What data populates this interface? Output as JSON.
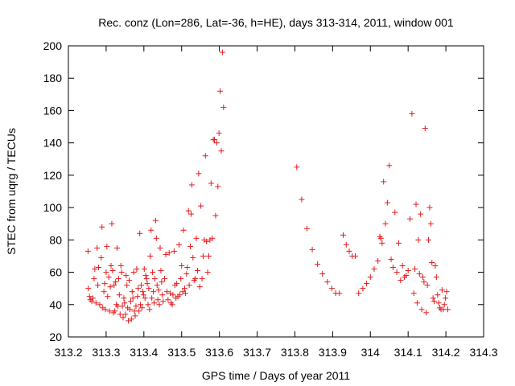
{
  "chart_data": {
    "type": "scatter",
    "title": "Rec. conz (Lon=286, Lat=-36, h=HE), days 313-314, 2011, window 001",
    "xlabel": "GPS time / Days of year 2011",
    "ylabel": "STEC from uqrg / TECUs",
    "xlim": [
      313.2,
      314.3
    ],
    "ylim": [
      20,
      200
    ],
    "x_ticks": [
      313.2,
      313.3,
      313.4,
      313.5,
      313.6,
      313.7,
      313.8,
      313.9,
      314,
      314.1,
      314.2,
      314.3
    ],
    "x_tick_labels": [
      "313.2",
      "313.3",
      "313.4",
      "313.5",
      "313.6",
      "313.7",
      "313.8",
      "313.9",
      "314",
      "314.1",
      "314.2",
      "314.3"
    ],
    "y_ticks": [
      20,
      40,
      60,
      80,
      100,
      120,
      140,
      160,
      180,
      200
    ],
    "y_tick_labels": [
      "20",
      "40",
      "60",
      "80",
      "100",
      "120",
      "140",
      "160",
      "180",
      "200"
    ],
    "grid": false,
    "marker": "+",
    "color": "#e41a1c",
    "series": [
      {
        "points": [
          [
            313.252,
            73
          ],
          [
            313.253,
            50
          ],
          [
            313.256,
            45
          ],
          [
            313.258,
            43
          ],
          [
            313.262,
            42
          ],
          [
            313.265,
            44
          ],
          [
            313.268,
            56
          ],
          [
            313.27,
            62
          ],
          [
            313.273,
            41
          ],
          [
            313.276,
            75
          ],
          [
            313.278,
            52
          ],
          [
            313.28,
            63
          ],
          [
            313.283,
            40
          ],
          [
            313.287,
            69
          ],
          [
            313.289,
            88
          ],
          [
            313.291,
            38
          ],
          [
            313.294,
            48
          ],
          [
            313.296,
            53
          ],
          [
            313.298,
            37
          ],
          [
            313.3,
            60
          ],
          [
            313.302,
            76
          ],
          [
            313.304,
            45
          ],
          [
            313.307,
            57
          ],
          [
            313.309,
            36
          ],
          [
            313.311,
            51
          ],
          [
            313.313,
            64
          ],
          [
            313.315,
            90
          ],
          [
            313.317,
            61
          ],
          [
            313.319,
            35
          ],
          [
            313.321,
            52
          ],
          [
            313.323,
            36
          ],
          [
            313.325,
            54
          ],
          [
            313.327,
            40
          ],
          [
            313.329,
            75
          ],
          [
            313.331,
            39
          ],
          [
            313.333,
            56
          ],
          [
            313.335,
            46
          ],
          [
            313.337,
            34
          ],
          [
            313.339,
            64
          ],
          [
            313.341,
            60
          ],
          [
            313.343,
            39
          ],
          [
            313.345,
            32
          ],
          [
            313.347,
            44
          ],
          [
            313.349,
            41
          ],
          [
            313.351,
            34
          ],
          [
            313.353,
            58
          ],
          [
            313.355,
            52
          ],
          [
            313.357,
            38
          ],
          [
            313.359,
            30
          ],
          [
            313.361,
            55
          ],
          [
            313.363,
            37
          ],
          [
            313.365,
            42
          ],
          [
            313.367,
            31
          ],
          [
            313.369,
            48
          ],
          [
            313.371,
            44
          ],
          [
            313.373,
            60
          ],
          [
            313.375,
            36
          ],
          [
            313.377,
            33
          ],
          [
            313.379,
            39
          ],
          [
            313.381,
            62
          ],
          [
            313.383,
            45
          ],
          [
            313.385,
            50
          ],
          [
            313.387,
            36
          ],
          [
            313.389,
            84
          ],
          [
            313.391,
            40
          ],
          [
            313.393,
            52
          ],
          [
            313.395,
            38
          ],
          [
            313.397,
            48
          ],
          [
            313.399,
            46
          ],
          [
            313.401,
            62
          ],
          [
            313.403,
            44
          ],
          [
            313.405,
            58
          ],
          [
            313.407,
            56
          ],
          [
            313.409,
            53
          ],
          [
            313.411,
            40
          ],
          [
            313.413,
            50
          ],
          [
            313.415,
            37
          ],
          [
            313.417,
            70
          ],
          [
            313.419,
            86
          ],
          [
            313.421,
            44
          ],
          [
            313.423,
            60
          ],
          [
            313.425,
            48
          ],
          [
            313.427,
            41
          ],
          [
            313.429,
            56
          ],
          [
            313.431,
            92
          ],
          [
            313.433,
            81
          ],
          [
            313.435,
            52
          ],
          [
            313.437,
            43
          ],
          [
            313.439,
            49
          ],
          [
            313.441,
            40
          ],
          [
            313.443,
            75
          ],
          [
            313.445,
            61
          ],
          [
            313.447,
            54
          ],
          [
            313.449,
            46
          ],
          [
            313.451,
            42
          ],
          [
            313.455,
            56
          ],
          [
            313.458,
            71
          ],
          [
            313.461,
            48
          ],
          [
            313.464,
            43
          ],
          [
            313.467,
            72
          ],
          [
            313.47,
            47
          ],
          [
            313.472,
            41
          ],
          [
            313.475,
            40
          ],
          [
            313.477,
            46
          ],
          [
            313.48,
            73
          ],
          [
            313.482,
            52
          ],
          [
            313.485,
            44
          ],
          [
            313.487,
            53
          ],
          [
            313.49,
            45
          ],
          [
            313.493,
            77
          ],
          [
            313.495,
            46
          ],
          [
            313.498,
            56
          ],
          [
            313.5,
            64
          ],
          [
            313.503,
            48
          ],
          [
            313.505,
            86
          ],
          [
            313.508,
            50
          ],
          [
            313.51,
            47
          ],
          [
            313.513,
            59
          ],
          [
            313.515,
            63
          ],
          [
            313.518,
            98
          ],
          [
            313.52,
            52
          ],
          [
            313.523,
            76
          ],
          [
            313.525,
            96
          ],
          [
            313.527,
            114
          ],
          [
            313.53,
            69
          ],
          [
            313.533,
            55
          ],
          [
            313.536,
            56
          ],
          [
            313.539,
            81
          ],
          [
            313.542,
            61
          ],
          [
            313.545,
            121
          ],
          [
            313.548,
            51
          ],
          [
            313.551,
            101
          ],
          [
            313.554,
            56
          ],
          [
            313.557,
            70
          ],
          [
            313.56,
            80
          ],
          [
            313.563,
            132
          ],
          [
            313.566,
            79
          ],
          [
            313.569,
            60
          ],
          [
            313.572,
            70
          ],
          [
            313.575,
            80
          ],
          [
            313.578,
            115
          ],
          [
            313.581,
            81
          ],
          [
            313.584,
            142
          ],
          [
            313.587,
            142
          ],
          [
            313.59,
            95
          ],
          [
            313.593,
            140
          ],
          [
            313.596,
            113
          ],
          [
            313.599,
            146
          ],
          [
            313.602,
            172
          ],
          [
            313.605,
            135
          ],
          [
            313.608,
            196
          ],
          [
            313.611,
            162
          ],
          [
            313.805,
            125
          ],
          [
            313.818,
            105
          ],
          [
            313.832,
            87
          ],
          [
            313.846,
            74
          ],
          [
            313.86,
            65
          ],
          [
            313.873,
            59
          ],
          [
            313.886,
            54
          ],
          [
            313.898,
            50
          ],
          [
            313.908,
            47
          ],
          [
            313.918,
            47
          ],
          [
            313.928,
            83
          ],
          [
            313.936,
            77
          ],
          [
            313.944,
            73
          ],
          [
            313.952,
            70
          ],
          [
            313.96,
            70
          ],
          [
            313.969,
            47
          ],
          [
            313.98,
            50
          ],
          [
            313.99,
            53
          ],
          [
            314.0,
            57
          ],
          [
            314.01,
            62
          ],
          [
            314.02,
            67
          ],
          [
            314.025,
            82
          ],
          [
            314.028,
            81
          ],
          [
            314.031,
            78
          ],
          [
            314.035,
            116
          ],
          [
            314.04,
            90
          ],
          [
            314.045,
            103
          ],
          [
            314.05,
            126
          ],
          [
            314.055,
            68
          ],
          [
            314.06,
            63
          ],
          [
            314.065,
            97
          ],
          [
            314.07,
            60
          ],
          [
            314.075,
            78
          ],
          [
            314.08,
            55
          ],
          [
            314.085,
            64
          ],
          [
            314.09,
            57
          ],
          [
            314.095,
            58
          ],
          [
            314.1,
            61
          ],
          [
            314.105,
            93
          ],
          [
            314.11,
            158
          ],
          [
            314.115,
            47
          ],
          [
            314.118,
            62
          ],
          [
            314.121,
            102
          ],
          [
            314.124,
            41
          ],
          [
            314.127,
            80
          ],
          [
            314.13,
            59
          ],
          [
            314.133,
            96
          ],
          [
            314.136,
            37
          ],
          [
            314.139,
            57
          ],
          [
            314.142,
            54
          ],
          [
            314.145,
            149
          ],
          [
            314.148,
            35
          ],
          [
            314.151,
            52
          ],
          [
            314.154,
            80
          ],
          [
            314.157,
            100
          ],
          [
            314.16,
            90
          ],
          [
            314.163,
            66
          ],
          [
            314.166,
            44
          ],
          [
            314.169,
            42
          ],
          [
            314.172,
            64
          ],
          [
            314.175,
            57
          ],
          [
            314.178,
            46
          ],
          [
            314.181,
            41
          ],
          [
            314.184,
            38
          ],
          [
            314.187,
            37
          ],
          [
            314.19,
            49
          ],
          [
            314.193,
            37
          ],
          [
            314.196,
            40
          ],
          [
            314.199,
            44
          ],
          [
            314.202,
            48
          ],
          [
            314.205,
            37
          ]
        ]
      }
    ]
  }
}
